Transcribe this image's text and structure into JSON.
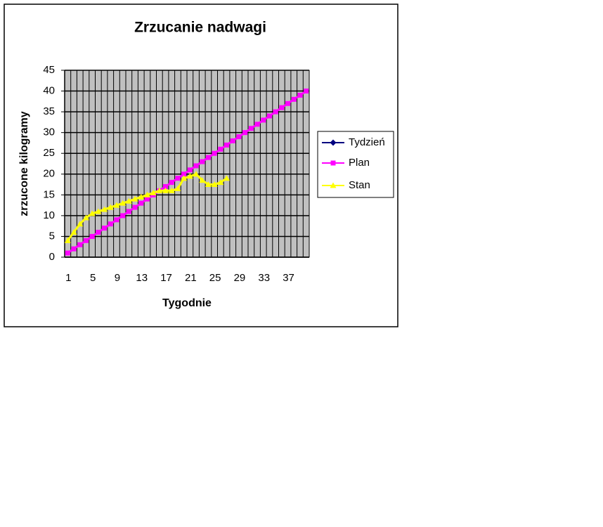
{
  "chart_data": {
    "type": "line",
    "title": "Zrzucanie nadwagi",
    "xlabel": "Tygodnie",
    "ylabel": "zrzucone kilogramy",
    "categories": [
      "1",
      null,
      null,
      null,
      "5",
      null,
      null,
      null,
      "9",
      null,
      null,
      null,
      "13",
      null,
      null,
      null,
      "17",
      null,
      null,
      null,
      "21",
      null,
      null,
      null,
      "25",
      null,
      null,
      null,
      "29",
      null,
      null,
      null,
      "33",
      null,
      null,
      null,
      "37",
      null,
      null,
      null
    ],
    "series": [
      {
        "name": "Tydzień",
        "color": "#000080",
        "marker": "diamond",
        "values": [
          null,
          null,
          null,
          null,
          null,
          null,
          null,
          null,
          null,
          null,
          null,
          null,
          null,
          null,
          null,
          null,
          null,
          null,
          null,
          null,
          null,
          null,
          null,
          null,
          null,
          null,
          null,
          null,
          null,
          null,
          null,
          null,
          null,
          null,
          null,
          null,
          null,
          null,
          null,
          null
        ]
      },
      {
        "name": "Plan",
        "color": "#ff00ff",
        "marker": "square",
        "values": [
          1,
          2,
          3,
          4,
          5,
          6,
          7,
          8,
          9,
          10,
          11,
          12,
          13,
          14,
          15,
          16,
          17,
          18,
          19,
          20,
          21,
          22,
          23,
          24,
          25,
          26,
          27,
          28,
          29,
          30,
          31,
          32,
          33,
          34,
          35,
          36,
          37,
          38,
          39,
          40
        ]
      },
      {
        "name": "Stan",
        "color": "#ffff00",
        "marker": "triangle",
        "values": [
          4,
          6,
          8,
          9.5,
          10.5,
          11,
          11.5,
          12,
          12.5,
          13,
          13.5,
          14,
          14.5,
          15,
          15.5,
          16,
          16,
          16,
          16.5,
          19,
          19.5,
          20,
          18.5,
          17.5,
          17.5,
          18,
          19,
          null,
          null,
          null,
          null,
          null,
          null,
          null,
          null,
          null,
          null,
          null,
          null,
          null
        ]
      }
    ],
    "ylim": [
      0,
      45
    ],
    "yticks": [
      0,
      5,
      10,
      15,
      20,
      25,
      30,
      35,
      40,
      45
    ],
    "grid": true,
    "legend": "right"
  }
}
